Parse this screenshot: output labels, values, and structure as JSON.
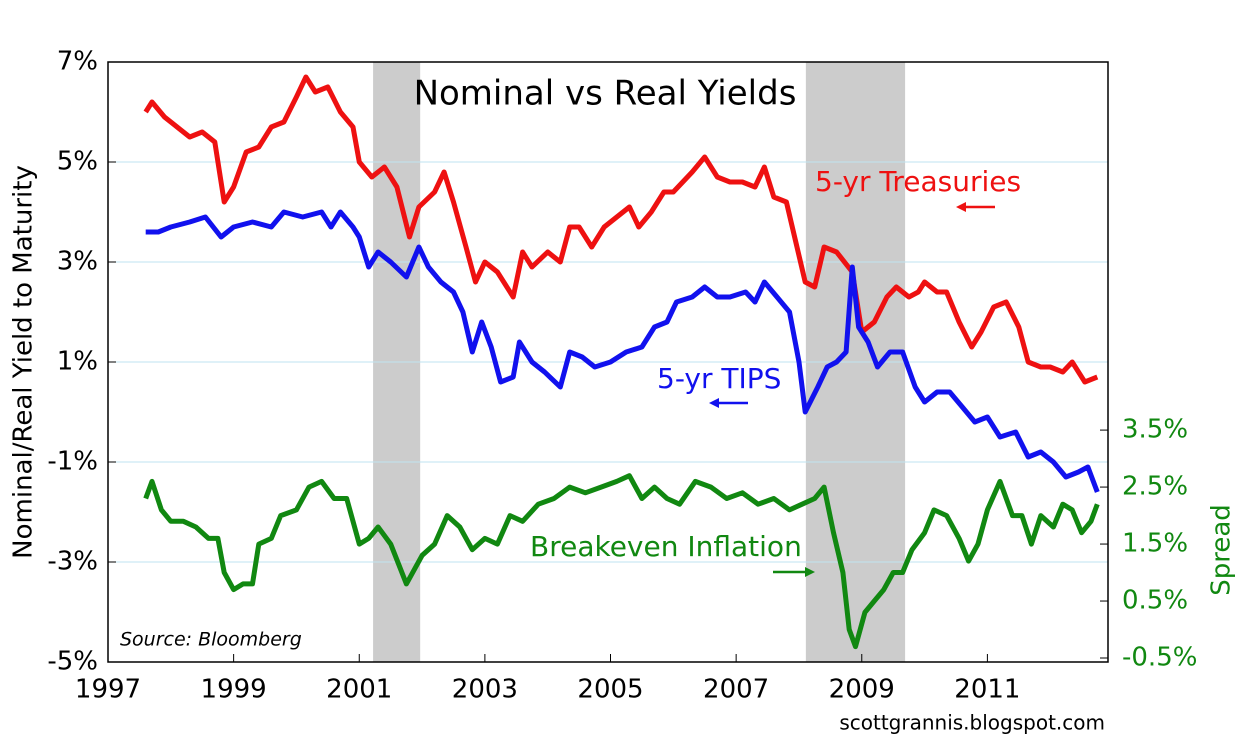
{
  "chart_data": {
    "type": "line",
    "title": "Nominal vs Real Yields",
    "ylabel": "Nominal/Real Yield to Maturity",
    "y2label": "Spread",
    "source": "Source: Bloomberg",
    "watermark": "scottgrannis.blogspot.com",
    "xlim": [
      1997,
      2012.92
    ],
    "xticks": [
      1997,
      1999,
      2001,
      2003,
      2005,
      2007,
      2009,
      2011
    ],
    "ylim": [
      -5,
      7
    ],
    "yticks": [
      {
        "value": 7,
        "label": "7%"
      },
      {
        "value": 5,
        "label": "5%"
      },
      {
        "value": 3,
        "label": "3%"
      },
      {
        "value": 1,
        "label": "1%"
      },
      {
        "value": -1,
        "label": "-1%"
      },
      {
        "value": -3,
        "label": "-3%"
      },
      {
        "value": -5,
        "label": "-5%"
      }
    ],
    "y2lim": [
      -0.57,
      9.96
    ],
    "y2ticks": [
      {
        "value": 3.5,
        "label": "3.5%"
      },
      {
        "value": 2.5,
        "label": "2.5%"
      },
      {
        "value": 1.5,
        "label": "1.5%"
      },
      {
        "value": 0.5,
        "label": "0.5%"
      },
      {
        "value": -0.5,
        "label": "-0.5%"
      }
    ],
    "grid": true,
    "shaded_periods": [
      [
        2001.22,
        2001.97
      ],
      [
        2008.11,
        2009.69
      ]
    ],
    "series": [
      {
        "name": "5-yr Treasuries",
        "color": "#ee1111",
        "x": [
          1997.6,
          1997.7,
          1997.9,
          1998.1,
          1998.3,
          1998.5,
          1998.7,
          1998.85,
          1999.0,
          1999.2,
          1999.4,
          1999.6,
          1999.8,
          2000.0,
          2000.15,
          2000.3,
          2000.5,
          2000.7,
          2000.9,
          2001.0,
          2001.2,
          2001.4,
          2001.6,
          2001.8,
          2001.95,
          2002.2,
          2002.35,
          2002.5,
          2002.7,
          2002.85,
          2003.0,
          2003.2,
          2003.45,
          2003.6,
          2003.75,
          2004.0,
          2004.2,
          2004.35,
          2004.5,
          2004.7,
          2004.9,
          2005.1,
          2005.3,
          2005.45,
          2005.65,
          2005.85,
          2006.0,
          2006.3,
          2006.5,
          2006.7,
          2006.9,
          2007.1,
          2007.3,
          2007.45,
          2007.6,
          2007.8,
          2007.95,
          2008.1,
          2008.25,
          2008.4,
          2008.6,
          2008.85,
          2009.0,
          2009.2,
          2009.4,
          2009.55,
          2009.75,
          2009.9,
          2010.0,
          2010.2,
          2010.35,
          2010.55,
          2010.75,
          2010.9,
          2011.1,
          2011.3,
          2011.5,
          2011.65,
          2011.85,
          2012.0,
          2012.2,
          2012.35,
          2012.55,
          2012.75
        ],
        "values": [
          6.0,
          6.2,
          5.9,
          5.7,
          5.5,
          5.6,
          5.4,
          4.2,
          4.5,
          5.2,
          5.3,
          5.7,
          5.8,
          6.3,
          6.7,
          6.4,
          6.5,
          6.0,
          5.7,
          5.0,
          4.7,
          4.9,
          4.5,
          3.5,
          4.1,
          4.4,
          4.8,
          4.2,
          3.3,
          2.6,
          3.0,
          2.8,
          2.3,
          3.2,
          2.9,
          3.2,
          3.0,
          3.7,
          3.7,
          3.3,
          3.7,
          3.9,
          4.1,
          3.7,
          4.0,
          4.4,
          4.4,
          4.8,
          5.1,
          4.7,
          4.6,
          4.6,
          4.5,
          4.9,
          4.3,
          4.2,
          3.4,
          2.6,
          2.5,
          3.3,
          3.2,
          2.8,
          1.6,
          1.8,
          2.3,
          2.5,
          2.3,
          2.4,
          2.6,
          2.4,
          2.4,
          1.8,
          1.3,
          1.6,
          2.1,
          2.2,
          1.7,
          1.0,
          0.9,
          0.9,
          0.8,
          1.0,
          0.6,
          0.7
        ]
      },
      {
        "name": "5-yr TIPS",
        "color": "#1111ee",
        "x": [
          1997.6,
          1997.8,
          1998.0,
          1998.3,
          1998.55,
          1998.8,
          1999.0,
          1999.3,
          1999.6,
          1999.8,
          2000.1,
          2000.4,
          2000.55,
          2000.7,
          2000.9,
          2001.0,
          2001.15,
          2001.3,
          2001.5,
          2001.75,
          2001.95,
          2002.1,
          2002.3,
          2002.5,
          2002.65,
          2002.8,
          2002.95,
          2003.1,
          2003.25,
          2003.45,
          2003.55,
          2003.75,
          2003.95,
          2004.2,
          2004.35,
          2004.55,
          2004.75,
          2005.0,
          2005.25,
          2005.5,
          2005.7,
          2005.9,
          2006.05,
          2006.3,
          2006.5,
          2006.7,
          2006.9,
          2007.15,
          2007.3,
          2007.45,
          2007.65,
          2007.85,
          2008.0,
          2008.1,
          2008.3,
          2008.45,
          2008.6,
          2008.75,
          2008.85,
          2008.95,
          2009.1,
          2009.25,
          2009.45,
          2009.65,
          2009.85,
          2010.0,
          2010.2,
          2010.4,
          2010.6,
          2010.8,
          2011.0,
          2011.2,
          2011.45,
          2011.65,
          2011.85,
          2012.05,
          2012.25,
          2012.45,
          2012.6,
          2012.75
        ],
        "values": [
          3.6,
          3.6,
          3.7,
          3.8,
          3.9,
          3.5,
          3.7,
          3.8,
          3.7,
          4.0,
          3.9,
          4.0,
          3.7,
          4.0,
          3.7,
          3.5,
          2.9,
          3.2,
          3.0,
          2.7,
          3.3,
          2.9,
          2.6,
          2.4,
          2.0,
          1.2,
          1.8,
          1.3,
          0.6,
          0.7,
          1.4,
          1.0,
          0.8,
          0.5,
          1.2,
          1.1,
          0.9,
          1.0,
          1.2,
          1.3,
          1.7,
          1.8,
          2.2,
          2.3,
          2.5,
          2.3,
          2.3,
          2.4,
          2.2,
          2.6,
          2.3,
          2.0,
          1.0,
          0.0,
          0.5,
          0.9,
          1.0,
          1.2,
          2.9,
          1.7,
          1.4,
          0.9,
          1.2,
          1.2,
          0.5,
          0.2,
          0.4,
          0.4,
          0.1,
          -0.2,
          -0.1,
          -0.5,
          -0.4,
          -0.9,
          -0.8,
          -1.0,
          -1.3,
          -1.2,
          -1.1,
          -1.6
        ]
      },
      {
        "name": "Breakeven Inflation",
        "color": "#118811",
        "axis": "y2",
        "x": [
          1997.6,
          1997.7,
          1997.85,
          1998.0,
          1998.2,
          1998.4,
          1998.6,
          1998.75,
          1998.85,
          1999.0,
          1999.15,
          1999.3,
          1999.4,
          1999.6,
          1999.75,
          2000.0,
          2000.2,
          2000.4,
          2000.6,
          2000.8,
          2001.0,
          2001.15,
          2001.3,
          2001.5,
          2001.75,
          2002.0,
          2002.2,
          2002.4,
          2002.6,
          2002.8,
          2003.0,
          2003.2,
          2003.4,
          2003.6,
          2003.85,
          2004.1,
          2004.35,
          2004.6,
          2004.85,
          2005.1,
          2005.3,
          2005.5,
          2005.7,
          2005.9,
          2006.1,
          2006.35,
          2006.6,
          2006.85,
          2007.1,
          2007.35,
          2007.6,
          2007.85,
          2008.05,
          2008.25,
          2008.4,
          2008.55,
          2008.7,
          2008.8,
          2008.9,
          2009.05,
          2009.2,
          2009.35,
          2009.5,
          2009.65,
          2009.8,
          2010.0,
          2010.15,
          2010.35,
          2010.55,
          2010.7,
          2010.85,
          2011.0,
          2011.2,
          2011.4,
          2011.55,
          2011.7,
          2011.85,
          2012.05,
          2012.2,
          2012.35,
          2012.5,
          2012.65,
          2012.75
        ],
        "values": [
          2.3,
          2.6,
          2.1,
          1.9,
          1.9,
          1.8,
          1.6,
          1.6,
          1.0,
          0.7,
          0.8,
          0.8,
          1.5,
          1.6,
          2.0,
          2.1,
          2.5,
          2.6,
          2.3,
          2.3,
          1.5,
          1.6,
          1.8,
          1.5,
          0.8,
          1.3,
          1.5,
          2.0,
          1.8,
          1.4,
          1.6,
          1.5,
          2.0,
          1.9,
          2.2,
          2.3,
          2.5,
          2.4,
          2.5,
          2.6,
          2.7,
          2.3,
          2.5,
          2.3,
          2.2,
          2.6,
          2.5,
          2.3,
          2.4,
          2.2,
          2.3,
          2.1,
          2.2,
          2.3,
          2.5,
          1.7,
          1.0,
          0.0,
          -0.3,
          0.3,
          0.5,
          0.7,
          1.0,
          1.0,
          1.4,
          1.7,
          2.1,
          2.0,
          1.6,
          1.2,
          1.5,
          2.1,
          2.6,
          2.0,
          2.0,
          1.5,
          2.0,
          1.8,
          2.2,
          2.1,
          1.7,
          1.9,
          2.2
        ]
      }
    ]
  }
}
